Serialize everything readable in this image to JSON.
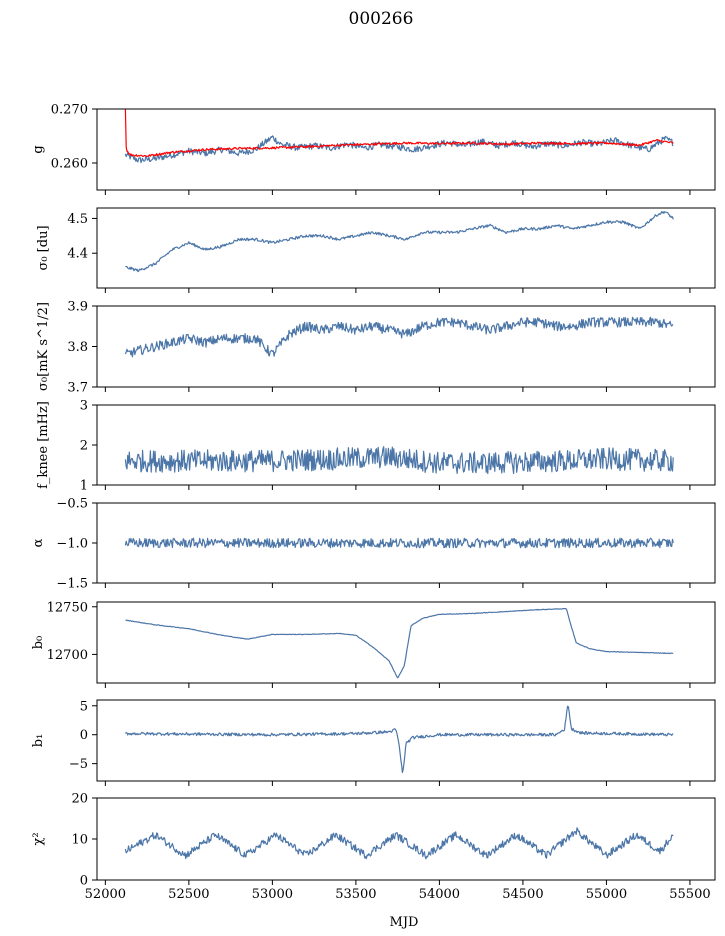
{
  "title": "000266",
  "colors": {
    "series": "#4c76a8",
    "model": "#ff0000"
  },
  "xlabel": "MJD",
  "xlim": [
    51950,
    55650
  ],
  "xticks": [
    52000,
    52500,
    53000,
    53500,
    54000,
    54500,
    55000,
    55500
  ],
  "chart_data": [
    {
      "type": "line",
      "ylabel": "g",
      "ylim": [
        0.255,
        0.27
      ],
      "yticks": [
        0.26,
        0.27
      ],
      "ytick_labels": [
        "0.260",
        "0.270"
      ],
      "x_range": [
        52120,
        55400
      ],
      "series": [
        {
          "values": [
            [
              52120,
              0.2615
            ],
            [
              52200,
              0.2605
            ],
            [
              52300,
              0.2608
            ],
            [
              52400,
              0.2615
            ],
            [
              52500,
              0.2622
            ],
            [
              52600,
              0.2618
            ],
            [
              52700,
              0.2625
            ],
            [
              52800,
              0.2618
            ],
            [
              52900,
              0.2625
            ],
            [
              53000,
              0.2648
            ],
            [
              53050,
              0.2635
            ],
            [
              53150,
              0.2628
            ],
            [
              53250,
              0.2632
            ],
            [
              53350,
              0.2628
            ],
            [
              53450,
              0.2635
            ],
            [
              53550,
              0.2628
            ],
            [
              53650,
              0.2634
            ],
            [
              53750,
              0.263
            ],
            [
              53850,
              0.2625
            ],
            [
              53950,
              0.2632
            ],
            [
              54050,
              0.2638
            ],
            [
              54150,
              0.2632
            ],
            [
              54250,
              0.264
            ],
            [
              54350,
              0.2632
            ],
            [
              54450,
              0.2638
            ],
            [
              54550,
              0.263
            ],
            [
              54650,
              0.2636
            ],
            [
              54750,
              0.2632
            ],
            [
              54850,
              0.2638
            ],
            [
              54950,
              0.2635
            ],
            [
              55050,
              0.2642
            ],
            [
              55150,
              0.2632
            ],
            [
              55250,
              0.2625
            ],
            [
              55350,
              0.2645
            ],
            [
              55400,
              0.2638
            ]
          ],
          "noise": 0.0006,
          "color": "series"
        },
        {
          "values": [
            [
              52120,
              0.27
            ],
            [
              52125,
              0.2625
            ],
            [
              52150,
              0.2615
            ],
            [
              52250,
              0.2613
            ],
            [
              52400,
              0.262
            ],
            [
              52600,
              0.2625
            ],
            [
              52800,
              0.2627
            ],
            [
              53000,
              0.2628
            ],
            [
              53200,
              0.263
            ],
            [
              53400,
              0.2633
            ],
            [
              53600,
              0.2635
            ],
            [
              53800,
              0.2637
            ],
            [
              54000,
              0.2636
            ],
            [
              54200,
              0.2637
            ],
            [
              54400,
              0.2635
            ],
            [
              54600,
              0.2637
            ],
            [
              54800,
              0.2636
            ],
            [
              55000,
              0.2637
            ],
            [
              55200,
              0.2633
            ],
            [
              55300,
              0.2642
            ],
            [
              55400,
              0.2637
            ]
          ],
          "noise": 0.0002,
          "color": "model",
          "width": 3
        }
      ]
    },
    {
      "type": "line",
      "ylabel": "σ₀ [du]",
      "ylim": [
        4.3,
        4.53
      ],
      "yticks": [
        4.4,
        4.5
      ],
      "ytick_labels": [
        "4.4",
        "4.5"
      ],
      "x_range": [
        52120,
        55400
      ],
      "series": [
        {
          "values": [
            [
              52120,
              4.36
            ],
            [
              52200,
              4.35
            ],
            [
              52300,
              4.37
            ],
            [
              52400,
              4.41
            ],
            [
              52500,
              4.43
            ],
            [
              52600,
              4.41
            ],
            [
              52700,
              4.42
            ],
            [
              52800,
              4.44
            ],
            [
              52900,
              4.44
            ],
            [
              53000,
              4.43
            ],
            [
              53100,
              4.44
            ],
            [
              53200,
              4.45
            ],
            [
              53300,
              4.45
            ],
            [
              53400,
              4.44
            ],
            [
              53500,
              4.45
            ],
            [
              53600,
              4.46
            ],
            [
              53700,
              4.45
            ],
            [
              53800,
              4.44
            ],
            [
              53900,
              4.46
            ],
            [
              54000,
              4.46
            ],
            [
              54100,
              4.46
            ],
            [
              54200,
              4.47
            ],
            [
              54300,
              4.48
            ],
            [
              54400,
              4.46
            ],
            [
              54500,
              4.47
            ],
            [
              54600,
              4.47
            ],
            [
              54700,
              4.48
            ],
            [
              54800,
              4.47
            ],
            [
              54900,
              4.48
            ],
            [
              55000,
              4.49
            ],
            [
              55100,
              4.49
            ],
            [
              55200,
              4.47
            ],
            [
              55300,
              4.51
            ],
            [
              55350,
              4.52
            ],
            [
              55400,
              4.5
            ]
          ],
          "noise": 0.004,
          "color": "series"
        }
      ]
    },
    {
      "type": "line",
      "ylabel": "σ₀[mK s^1/2]",
      "ylim": [
        3.7,
        3.9
      ],
      "yticks": [
        3.7,
        3.8,
        3.9
      ],
      "ytick_labels": [
        "3.7",
        "3.8",
        "3.9"
      ],
      "x_range": [
        52120,
        55400
      ],
      "series": [
        {
          "values": [
            [
              52120,
              3.78
            ],
            [
              52200,
              3.79
            ],
            [
              52300,
              3.8
            ],
            [
              52400,
              3.81
            ],
            [
              52500,
              3.82
            ],
            [
              52600,
              3.81
            ],
            [
              52700,
              3.82
            ],
            [
              52800,
              3.82
            ],
            [
              52900,
              3.82
            ],
            [
              52950,
              3.8
            ],
            [
              53000,
              3.78
            ],
            [
              53100,
              3.83
            ],
            [
              53200,
              3.85
            ],
            [
              53300,
              3.84
            ],
            [
              53400,
              3.85
            ],
            [
              53500,
              3.84
            ],
            [
              53600,
              3.85
            ],
            [
              53700,
              3.84
            ],
            [
              53800,
              3.83
            ],
            [
              53900,
              3.85
            ],
            [
              54000,
              3.86
            ],
            [
              54100,
              3.86
            ],
            [
              54200,
              3.85
            ],
            [
              54300,
              3.84
            ],
            [
              54400,
              3.85
            ],
            [
              54500,
              3.86
            ],
            [
              54600,
              3.86
            ],
            [
              54700,
              3.85
            ],
            [
              54800,
              3.85
            ],
            [
              54900,
              3.86
            ],
            [
              55000,
              3.86
            ],
            [
              55100,
              3.86
            ],
            [
              55200,
              3.86
            ],
            [
              55300,
              3.86
            ],
            [
              55400,
              3.85
            ]
          ],
          "noise": 0.012,
          "color": "series"
        }
      ]
    },
    {
      "type": "line",
      "ylabel": "f_knee [mHz]",
      "ylim": [
        1,
        3
      ],
      "yticks": [
        1,
        2,
        3
      ],
      "ytick_labels": [
        "1",
        "2",
        "3"
      ],
      "x_range": [
        52120,
        55400
      ],
      "series": [
        {
          "values": [
            [
              52120,
              1.6
            ],
            [
              52500,
              1.6
            ],
            [
              52950,
              1.6
            ],
            [
              53400,
              1.65
            ],
            [
              53700,
              1.7
            ],
            [
              54000,
              1.55
            ],
            [
              54300,
              1.55
            ],
            [
              54750,
              1.6
            ],
            [
              55000,
              1.65
            ],
            [
              55400,
              1.6
            ]
          ],
          "noise": 0.28,
          "color": "series"
        }
      ]
    },
    {
      "type": "line",
      "ylabel": "α",
      "ylim": [
        -1.5,
        -0.5
      ],
      "yticks": [
        -1.5,
        -1.0,
        -0.5
      ],
      "ytick_labels": [
        "−1.5",
        "−1.0",
        "−0.5"
      ],
      "x_range": [
        52120,
        55400
      ],
      "series": [
        {
          "values": [
            [
              52120,
              -1.0
            ],
            [
              53000,
              -1.0
            ],
            [
              54000,
              -1.0
            ],
            [
              55000,
              -1.0
            ],
            [
              55400,
              -1.0
            ]
          ],
          "noise": 0.06,
          "color": "series"
        }
      ]
    },
    {
      "type": "line",
      "ylabel": "b₀",
      "ylim": [
        12670,
        12755
      ],
      "yticks": [
        12700,
        12750
      ],
      "ytick_labels": [
        "12700",
        "12750"
      ],
      "x_range": [
        52120,
        55400
      ],
      "series": [
        {
          "values": [
            [
              52120,
              12736
            ],
            [
              52300,
              12731
            ],
            [
              52500,
              12727
            ],
            [
              52700,
              12720
            ],
            [
              52850,
              12716
            ],
            [
              53000,
              12721
            ],
            [
              53200,
              12721
            ],
            [
              53400,
              12722
            ],
            [
              53500,
              12720
            ],
            [
              53600,
              12708
            ],
            [
              53700,
              12693
            ],
            [
              53750,
              12675
            ],
            [
              53790,
              12688
            ],
            [
              53830,
              12730
            ],
            [
              53900,
              12738
            ],
            [
              54000,
              12742
            ],
            [
              54200,
              12743
            ],
            [
              54400,
              12745
            ],
            [
              54600,
              12747
            ],
            [
              54760,
              12748
            ],
            [
              54780,
              12735
            ],
            [
              54820,
              12712
            ],
            [
              54900,
              12706
            ],
            [
              55000,
              12703
            ],
            [
              55200,
              12702
            ],
            [
              55400,
              12701
            ]
          ],
          "noise": 0.3,
          "color": "series"
        }
      ]
    },
    {
      "type": "line",
      "ylabel": "b₁",
      "ylim": [
        -8,
        6
      ],
      "yticks": [
        -5,
        0,
        5
      ],
      "ytick_labels": [
        "−5",
        "0",
        "5"
      ],
      "x_range": [
        52120,
        55400
      ],
      "series": [
        {
          "values": [
            [
              52120,
              0.2
            ],
            [
              53000,
              0.0
            ],
            [
              53500,
              0.2
            ],
            [
              53700,
              0.5
            ],
            [
              53740,
              0.9
            ],
            [
              53760,
              -2.0
            ],
            [
              53780,
              -7.0
            ],
            [
              53800,
              -1.5
            ],
            [
              53840,
              -0.5
            ],
            [
              54000,
              0.0
            ],
            [
              54700,
              0.0
            ],
            [
              54750,
              1.0
            ],
            [
              54770,
              5.5
            ],
            [
              54790,
              1.0
            ],
            [
              54850,
              0.3
            ],
            [
              55400,
              0.0
            ]
          ],
          "noise": 0.25,
          "color": "series"
        }
      ]
    },
    {
      "type": "line",
      "ylabel": "χ²",
      "ylim": [
        0,
        20
      ],
      "yticks": [
        0,
        10,
        20
      ],
      "ytick_labels": [
        "0",
        "10",
        "20"
      ],
      "x_range": [
        52120,
        55400
      ],
      "series": [
        {
          "values": [
            [
              52120,
              7
            ],
            [
              52300,
              11
            ],
            [
              52480,
              6
            ],
            [
              52660,
              11
            ],
            [
              52840,
              6
            ],
            [
              53020,
              11
            ],
            [
              53200,
              6
            ],
            [
              53380,
              11
            ],
            [
              53560,
              6
            ],
            [
              53740,
              11
            ],
            [
              53920,
              6
            ],
            [
              54100,
              11
            ],
            [
              54280,
              6
            ],
            [
              54460,
              11
            ],
            [
              54640,
              6
            ],
            [
              54820,
              12
            ],
            [
              55000,
              6
            ],
            [
              55180,
              11
            ],
            [
              55320,
              7
            ],
            [
              55400,
              11
            ]
          ],
          "noise": 0.9,
          "color": "series"
        }
      ]
    }
  ]
}
